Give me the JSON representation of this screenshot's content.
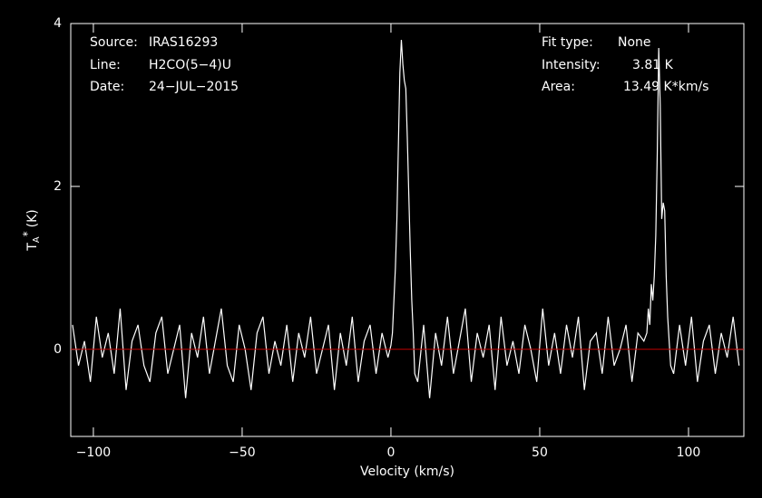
{
  "chart_data": {
    "type": "line",
    "info_left": [
      {
        "label": "Source:",
        "value": "IRAS16293"
      },
      {
        "label": "Line:",
        "value": "H2CO(5−4)U"
      },
      {
        "label": "Date:",
        "value": "24−JUL−2015"
      }
    ],
    "info_right": [
      {
        "label": "Fit type:",
        "value": "None"
      },
      {
        "label": "Intensity:",
        "value": "3.81 K"
      },
      {
        "label": "Area:",
        "value": "13.49 K*km/s"
      }
    ],
    "xlabel": "Velocity (km/s)",
    "ylabel": {
      "main": "T",
      "sub": "A",
      "sup": "*",
      "unit": "(K)"
    },
    "xlim": [
      -107.6,
      118.6
    ],
    "ylim": [
      -1.07,
      4
    ],
    "xticks": [
      {
        "value": -100,
        "label": "−100"
      },
      {
        "value": -50,
        "label": "−50"
      },
      0,
      50,
      100
    ],
    "yticks": [
      0,
      2,
      4
    ],
    "color": "#ffffff",
    "baseline_color": "#c00000",
    "x": [
      -107,
      -105,
      -103,
      -101,
      -99,
      -97,
      -95,
      -93,
      -91,
      -89,
      -87,
      -85,
      -83,
      -81,
      -79,
      -77,
      -75,
      -73,
      -71,
      -69,
      -67,
      -65,
      -63,
      -61,
      -59,
      -57,
      -55,
      -53,
      -51,
      -49,
      -47,
      -45,
      -43,
      -41,
      -39,
      -37,
      -35,
      -33,
      -31,
      -29,
      -27,
      -25,
      -23,
      -21,
      -19,
      -17,
      -15,
      -13,
      -11,
      -9,
      -7,
      -5,
      -3,
      -1,
      0,
      0.5,
      1,
      1.5,
      2,
      2.5,
      3,
      3.5,
      4,
      4.5,
      5,
      5.5,
      6,
      6.5,
      7,
      7.5,
      8,
      9,
      11,
      13,
      15,
      17,
      19,
      21,
      23,
      25,
      27,
      29,
      31,
      33,
      35,
      37,
      39,
      41,
      43,
      45,
      47,
      49,
      51,
      53,
      55,
      57,
      59,
      61,
      63,
      65,
      67,
      69,
      71,
      73,
      75,
      77,
      79,
      81,
      83,
      85,
      86,
      86.5,
      87,
      87.5,
      88,
      88.5,
      89,
      89.5,
      90,
      90.5,
      91,
      91.5,
      92,
      92.5,
      93,
      93.5,
      94,
      95,
      97,
      99,
      101,
      103,
      105,
      107,
      109,
      111,
      113,
      115,
      117
    ],
    "values": [
      0.3,
      -0.2,
      0.1,
      -0.4,
      0.4,
      -0.1,
      0.2,
      -0.3,
      0.5,
      -0.5,
      0.1,
      0.3,
      -0.2,
      -0.4,
      0.2,
      0.4,
      -0.3,
      0.0,
      0.3,
      -0.6,
      0.2,
      -0.1,
      0.4,
      -0.3,
      0.1,
      0.5,
      -0.2,
      -0.4,
      0.3,
      0.0,
      -0.5,
      0.2,
      0.4,
      -0.3,
      0.1,
      -0.2,
      0.3,
      -0.4,
      0.2,
      -0.1,
      0.4,
      -0.3,
      0.0,
      0.3,
      -0.5,
      0.2,
      -0.2,
      0.4,
      -0.4,
      0.1,
      0.3,
      -0.3,
      0.2,
      -0.1,
      0.05,
      0.2,
      0.6,
      1.0,
      1.6,
      2.5,
      3.4,
      3.8,
      3.5,
      3.3,
      3.2,
      2.6,
      1.9,
      1.2,
      0.6,
      0.2,
      -0.3,
      -0.4,
      0.3,
      -0.6,
      0.2,
      -0.2,
      0.4,
      -0.3,
      0.1,
      0.5,
      -0.4,
      0.2,
      -0.1,
      0.3,
      -0.5,
      0.4,
      -0.2,
      0.1,
      -0.3,
      0.3,
      0.0,
      -0.4,
      0.5,
      -0.2,
      0.2,
      -0.3,
      0.3,
      -0.1,
      0.4,
      -0.5,
      0.1,
      0.2,
      -0.3,
      0.4,
      -0.2,
      0.0,
      0.3,
      -0.4,
      0.2,
      0.1,
      0.2,
      0.5,
      0.3,
      0.8,
      0.6,
      0.9,
      1.4,
      2.4,
      3.7,
      3.0,
      1.6,
      1.8,
      1.7,
      0.9,
      0.4,
      0.1,
      -0.2,
      -0.3,
      0.3,
      -0.2,
      0.4,
      -0.4,
      0.1,
      0.3,
      -0.3,
      0.2,
      -0.1,
      0.4,
      -0.2
    ]
  }
}
